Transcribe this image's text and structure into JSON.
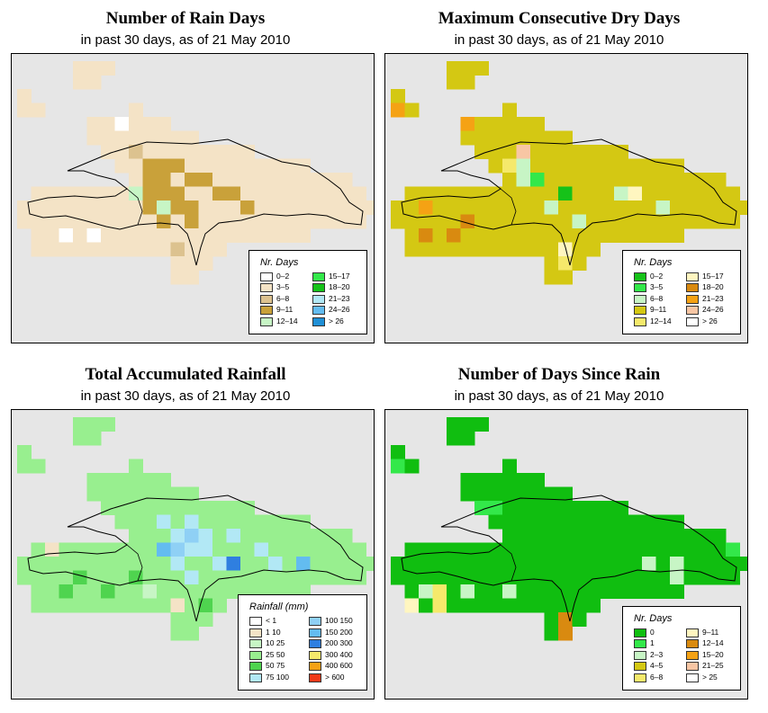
{
  "panels": [
    {
      "title": "Number of Rain Days",
      "subtitle": "in past 30 days, as of  21 May 2010",
      "default_fill": "#f4e3c6",
      "legend": {
        "title": "Nr. Days",
        "items": [
          {
            "label": "0–2",
            "color": "#ffffff"
          },
          {
            "label": "3–5",
            "color": "#f4e3c6"
          },
          {
            "label": "6–8",
            "color": "#dcc28f"
          },
          {
            "label": "9–11",
            "color": "#c9a13a"
          },
          {
            "label": "12–14",
            "color": "#c7f5c5"
          },
          {
            "label": "15–17",
            "color": "#33e84a"
          },
          {
            "label": "18–20",
            "color": "#16c219"
          },
          {
            "label": "21–23",
            "color": "#b2e8f5"
          },
          {
            "label": "24–26",
            "color": "#63bcf0"
          },
          {
            "label": "> 26",
            "color": "#1f8fd6"
          }
        ]
      }
    },
    {
      "title": "Maximum Consecutive Dry Days",
      "subtitle": "in past 30 days, as of  21 May 2010",
      "default_fill": "#d4c813",
      "legend": {
        "title": "Nr. Days",
        "items": [
          {
            "label": "0–2",
            "color": "#16c219"
          },
          {
            "label": "3–5",
            "color": "#33e84a"
          },
          {
            "label": "6–8",
            "color": "#c7f5c5"
          },
          {
            "label": "9–11",
            "color": "#d4c813"
          },
          {
            "label": "12–14",
            "color": "#f5e96b"
          },
          {
            "label": "15–17",
            "color": "#fff6c0"
          },
          {
            "label": "18–20",
            "color": "#d98a10"
          },
          {
            "label": "21–23",
            "color": "#f5a214"
          },
          {
            "label": "24–26",
            "color": "#f8c6a4"
          },
          {
            "label": "> 26",
            "color": "#ffffff"
          }
        ]
      }
    },
    {
      "title": "Total Accumulated Rainfall",
      "subtitle": "in past 30 days, as of  21 May 2010",
      "default_fill": "#98ef8f",
      "legend": {
        "title": "Rainfall (mm)",
        "items": [
          {
            "label": "< 1",
            "color": "#ffffff"
          },
          {
            "label": "1  10",
            "color": "#f4e3c6"
          },
          {
            "label": "10  25",
            "color": "#c7f5c5"
          },
          {
            "label": "25  50",
            "color": "#98ef8f"
          },
          {
            "label": "50  75",
            "color": "#4fd44f"
          },
          {
            "label": "75  100",
            "color": "#b2e8f5"
          },
          {
            "label": "100  150",
            "color": "#8fd0f5"
          },
          {
            "label": "150  200",
            "color": "#63bcf0"
          },
          {
            "label": "200  300",
            "color": "#2f7fe0"
          },
          {
            "label": "300  400",
            "color": "#f5e96b"
          },
          {
            "label": "400  600",
            "color": "#f5a214"
          },
          {
            "label": "> 600",
            "color": "#f03a1a"
          }
        ]
      }
    },
    {
      "title": "Number of Days Since Rain",
      "subtitle": "in past 30 days, as of  21 May 2010",
      "default_fill": "#10be10",
      "legend": {
        "title": "Nr. Days",
        "items": [
          {
            "label": "0",
            "color": "#10be10"
          },
          {
            "label": "1",
            "color": "#33e84a"
          },
          {
            "label": "2–3",
            "color": "#c7f5c5"
          },
          {
            "label": "4–5",
            "color": "#d4c813"
          },
          {
            "label": "6–8",
            "color": "#f5e96b"
          },
          {
            "label": "9–11",
            "color": "#fff6c0"
          },
          {
            "label": "12–14",
            "color": "#d98a10"
          },
          {
            "label": "15–20",
            "color": "#f5a214"
          },
          {
            "label": "21–25",
            "color": "#f8c6a4"
          },
          {
            "label": "> 25",
            "color": "#ffffff"
          }
        ]
      }
    }
  ]
}
